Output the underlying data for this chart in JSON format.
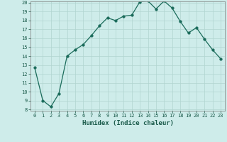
{
  "xlabel": "Humidex (Indice chaleur)",
  "x": [
    0,
    1,
    2,
    3,
    4,
    5,
    6,
    7,
    8,
    9,
    10,
    11,
    12,
    13,
    14,
    15,
    16,
    17,
    18,
    19,
    20,
    21,
    22,
    23
  ],
  "y": [
    12.7,
    9.0,
    8.3,
    9.8,
    14.0,
    14.7,
    15.3,
    16.3,
    17.4,
    18.3,
    18.0,
    18.5,
    18.6,
    20.1,
    20.2,
    19.3,
    20.2,
    19.4,
    17.9,
    16.6,
    17.2,
    15.9,
    14.7,
    13.7
  ],
  "line_color": "#1a6b5a",
  "marker_size": 2.5,
  "bg_color": "#ceecea",
  "grid_color": "#b0d4d0",
  "ylim": [
    8,
    20
  ],
  "xlim": [
    -0.5,
    23.5
  ],
  "yticks": [
    8,
    9,
    10,
    11,
    12,
    13,
    14,
    15,
    16,
    17,
    18,
    19,
    20
  ],
  "xticks": [
    0,
    1,
    2,
    3,
    4,
    5,
    6,
    7,
    8,
    9,
    10,
    11,
    12,
    13,
    14,
    15,
    16,
    17,
    18,
    19,
    20,
    21,
    22,
    23
  ],
  "tick_fontsize": 5.0,
  "xlabel_fontsize": 6.5
}
